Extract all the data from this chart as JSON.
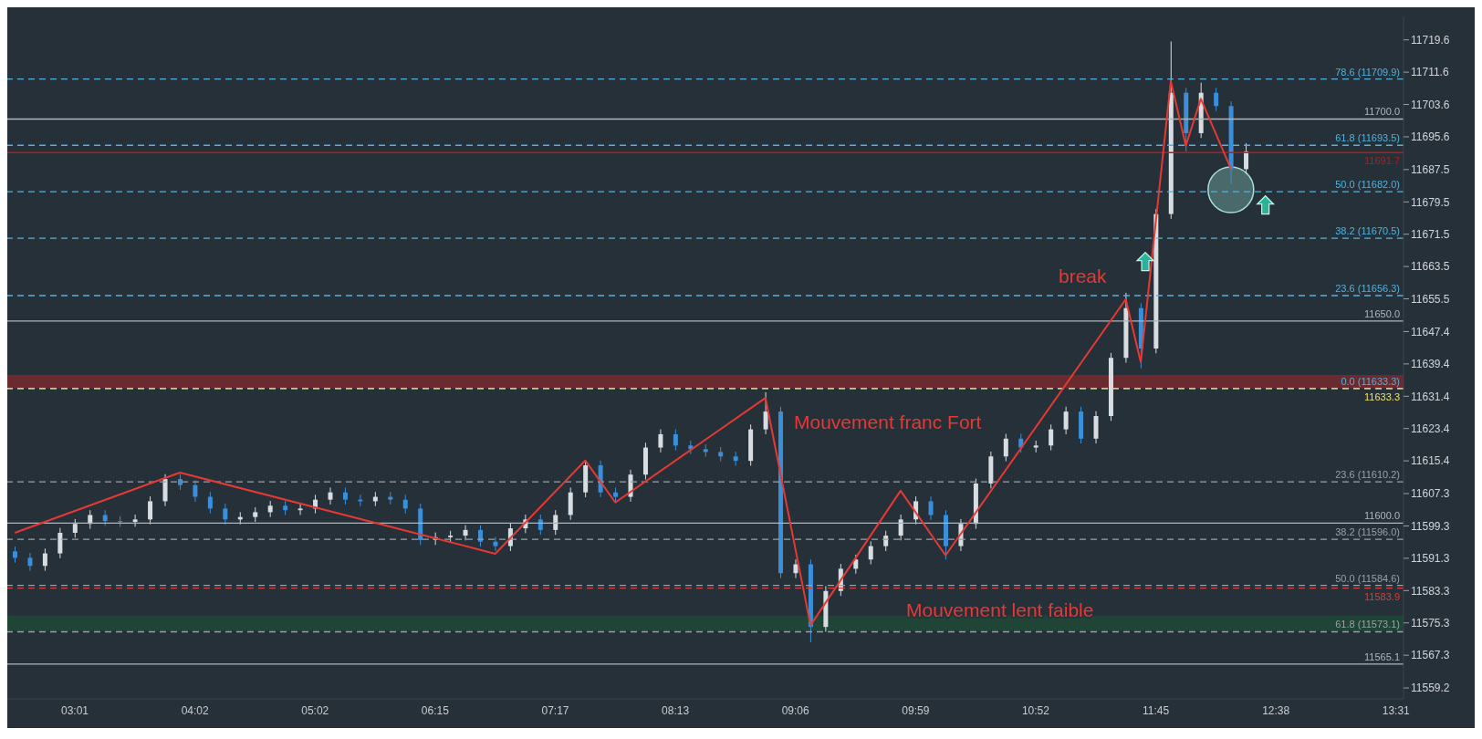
{
  "chart_data": {
    "type": "candlestick",
    "categories": [
      null,
      null,
      null,
      null,
      "03:01",
      null,
      null,
      null,
      null,
      null,
      null,
      null,
      "04:02",
      null,
      null,
      null,
      null,
      null,
      null,
      null,
      "05:02",
      null,
      null,
      null,
      null,
      null,
      null,
      null,
      "06:15",
      null,
      null,
      null,
      null,
      null,
      null,
      null,
      "07:17",
      null,
      null,
      null,
      null,
      null,
      null,
      null,
      "08:13",
      null,
      null,
      null,
      null,
      null,
      null,
      null,
      "09:06",
      null,
      null,
      null,
      null,
      null,
      null,
      null,
      "09:59",
      null,
      null,
      null,
      null,
      null,
      null,
      null,
      "10:52",
      null,
      null,
      null,
      null,
      null,
      null,
      null,
      "11:45",
      null,
      null,
      null,
      null,
      null,
      null,
      null,
      "12:38",
      null,
      null,
      null,
      null,
      null,
      null,
      null,
      "13:31"
    ],
    "ohlc": [
      [
        11593.0,
        11594.2,
        11590.2,
        11591.4
      ],
      [
        11591.4,
        11592.6,
        11588.2,
        11589.4
      ],
      [
        11589.4,
        11593.7,
        11588.2,
        11592.5
      ],
      [
        11592.5,
        11598.8,
        11591.3,
        11597.6
      ],
      [
        11597.6,
        11601.0,
        11596.4,
        11599.8
      ],
      [
        11599.8,
        11603.2,
        11598.6,
        11602.0
      ],
      [
        11602.0,
        11603.2,
        11599.3,
        11600.5
      ],
      [
        11600.5,
        11601.7,
        11599.1,
        11600.3
      ],
      [
        11600.3,
        11602.1,
        11599.1,
        11600.9
      ],
      [
        11600.9,
        11606.6,
        11599.7,
        11605.4
      ],
      [
        11605.4,
        11612.1,
        11604.2,
        11610.9
      ],
      [
        11610.9,
        11612.1,
        11608.2,
        11609.4
      ],
      [
        11609.4,
        11610.6,
        11605.3,
        11606.5
      ],
      [
        11606.5,
        11607.7,
        11602.4,
        11603.6
      ],
      [
        11603.6,
        11604.8,
        11599.7,
        11600.9
      ],
      [
        11600.9,
        11602.7,
        11599.7,
        11601.5
      ],
      [
        11601.5,
        11603.9,
        11600.3,
        11602.7
      ],
      [
        11602.7,
        11605.5,
        11601.5,
        11604.3
      ],
      [
        11604.3,
        11605.5,
        11602.0,
        11603.2
      ],
      [
        11603.2,
        11604.8,
        11602.0,
        11603.6
      ],
      [
        11603.6,
        11607.0,
        11602.4,
        11605.8
      ],
      [
        11605.8,
        11608.8,
        11604.6,
        11607.6
      ],
      [
        11607.6,
        11608.8,
        11604.6,
        11605.8
      ],
      [
        11605.8,
        11607.0,
        11604.2,
        11605.4
      ],
      [
        11605.4,
        11607.7,
        11604.2,
        11606.5
      ],
      [
        11606.5,
        11607.7,
        11604.6,
        11605.8
      ],
      [
        11605.8,
        11607.0,
        11602.4,
        11603.6
      ],
      [
        11603.6,
        11604.8,
        11594.6,
        11595.8
      ],
      [
        11595.8,
        11597.7,
        11594.6,
        11596.5
      ],
      [
        11596.5,
        11598.1,
        11595.3,
        11596.9
      ],
      [
        11596.9,
        11599.5,
        11595.7,
        11598.3
      ],
      [
        11598.3,
        11599.5,
        11594.2,
        11595.4
      ],
      [
        11595.4,
        11596.6,
        11593.1,
        11594.3
      ],
      [
        11594.3,
        11599.9,
        11593.1,
        11598.7
      ],
      [
        11598.7,
        11602.1,
        11597.5,
        11600.9
      ],
      [
        11600.9,
        11602.1,
        11597.1,
        11598.3
      ],
      [
        11598.3,
        11603.2,
        11597.1,
        11602.0
      ],
      [
        11602.0,
        11608.8,
        11600.8,
        11607.6
      ],
      [
        11607.6,
        11615.5,
        11606.4,
        11614.3
      ],
      [
        11614.3,
        11615.5,
        11606.4,
        11607.6
      ],
      [
        11607.6,
        11608.8,
        11605.3,
        11606.5
      ],
      [
        11606.5,
        11613.2,
        11605.3,
        11612.0
      ],
      [
        11612.0,
        11619.9,
        11610.8,
        11618.7
      ],
      [
        11618.7,
        11623.2,
        11617.5,
        11622.0
      ],
      [
        11622.0,
        11623.2,
        11618.0,
        11619.2
      ],
      [
        11619.2,
        11620.4,
        11617.1,
        11618.3
      ],
      [
        11618.3,
        11619.5,
        11616.4,
        11617.6
      ],
      [
        11617.6,
        11618.8,
        11615.3,
        11616.5
      ],
      [
        11616.5,
        11617.7,
        11614.2,
        11615.4
      ],
      [
        11615.4,
        11624.4,
        11614.2,
        11623.2
      ],
      [
        11623.2,
        11632.4,
        11622.0,
        11627.6
      ],
      [
        11627.6,
        11628.8,
        11586.4,
        11587.6
      ],
      [
        11587.6,
        11591.0,
        11586.4,
        11589.8
      ],
      [
        11589.8,
        11591.0,
        11570.5,
        11574.3
      ],
      [
        11574.3,
        11584.4,
        11573.1,
        11583.2
      ],
      [
        11583.2,
        11589.9,
        11582.0,
        11588.7
      ],
      [
        11588.7,
        11592.2,
        11587.5,
        11591.0
      ],
      [
        11591.0,
        11595.5,
        11589.8,
        11594.3
      ],
      [
        11594.3,
        11598.1,
        11593.1,
        11596.9
      ],
      [
        11596.9,
        11602.1,
        11595.7,
        11600.9
      ],
      [
        11600.9,
        11606.6,
        11599.7,
        11605.4
      ],
      [
        11605.4,
        11606.6,
        11600.8,
        11602.0
      ],
      [
        11602.0,
        11603.2,
        11591.0,
        11594.3
      ],
      [
        11594.3,
        11601.0,
        11593.1,
        11599.8
      ],
      [
        11599.8,
        11611.0,
        11598.6,
        11609.8
      ],
      [
        11609.8,
        11617.7,
        11608.6,
        11616.5
      ],
      [
        11616.5,
        11622.1,
        11615.3,
        11620.9
      ],
      [
        11620.9,
        11622.1,
        11617.5,
        11618.7
      ],
      [
        11618.7,
        11620.4,
        11617.5,
        11619.2
      ],
      [
        11619.2,
        11624.4,
        11618.0,
        11623.2
      ],
      [
        11623.2,
        11628.8,
        11622.0,
        11627.6
      ],
      [
        11627.6,
        11628.8,
        11619.7,
        11620.9
      ],
      [
        11620.9,
        11627.7,
        11619.7,
        11626.5
      ],
      [
        11626.5,
        11642.1,
        11625.3,
        11640.9
      ],
      [
        11640.9,
        11657.0,
        11639.7,
        11653.2
      ],
      [
        11653.2,
        11654.4,
        11638.3,
        11643.2
      ],
      [
        11643.2,
        11677.7,
        11642.0,
        11676.5
      ],
      [
        11676.5,
        11719.2,
        11675.3,
        11706.5
      ],
      [
        11706.5,
        11707.7,
        11692.0,
        11696.5
      ],
      [
        11696.5,
        11709.0,
        11695.3,
        11706.5
      ],
      [
        11706.5,
        11707.7,
        11702.0,
        11703.2
      ],
      [
        11703.2,
        11704.4,
        11684.0,
        11687.6
      ],
      [
        11687.6,
        11694.0,
        11686.4,
        11692.0
      ],
      null,
      null,
      null,
      null,
      null,
      null,
      null,
      null,
      null,
      null
    ],
    "series": [
      {
        "type": "line",
        "color": "#e53935",
        "values": [
          11597.6,
          null,
          null,
          null,
          null,
          null,
          null,
          null,
          null,
          null,
          null,
          11612.5,
          null,
          null,
          null,
          null,
          null,
          null,
          null,
          null,
          null,
          null,
          null,
          null,
          null,
          null,
          null,
          null,
          null,
          null,
          null,
          null,
          11592.4,
          null,
          null,
          null,
          null,
          null,
          11615.5,
          null,
          11605.1,
          null,
          null,
          null,
          null,
          null,
          null,
          null,
          null,
          null,
          11631.0,
          null,
          null,
          11574.7,
          null,
          null,
          null,
          null,
          null,
          11608.0,
          null,
          null,
          11592.0,
          null,
          null,
          null,
          null,
          null,
          null,
          null,
          null,
          null,
          null,
          null,
          11655.4,
          11639.8,
          null,
          11709.4,
          11693.4,
          11705.0,
          null,
          11687.7,
          null,
          null,
          null,
          null,
          null,
          null,
          null,
          null,
          null,
          null,
          null
        ]
      }
    ],
    "ylim": [
      11556.5,
      11725.4
    ],
    "yticks": [
      11559.2,
      11567.3,
      11575.3,
      11583.3,
      11591.3,
      11599.3,
      11607.3,
      11615.4,
      11623.4,
      11631.4,
      11639.4,
      11647.4,
      11655.5,
      11663.5,
      11671.5,
      11679.5,
      11687.5,
      11695.6,
      11703.6,
      11711.6,
      11719.6
    ],
    "ref_lines": [
      {
        "axis": "y",
        "value": 11709.9,
        "label": "78.6 (11709.9)",
        "color": "#4fb3e0",
        "line_style": "dashed"
      },
      {
        "axis": "y",
        "value": 11700.0,
        "label": "11700.0",
        "color": "#b0b5ba",
        "line_style": "solid"
      },
      {
        "axis": "y",
        "value": 11693.5,
        "label": "61.8 (11693.5)",
        "color": "#4fb3e0",
        "line_style": "dashed"
      },
      {
        "axis": "y",
        "value": 11691.7,
        "label": "11691.7",
        "color": "#b71c1c",
        "line_style": "solid"
      },
      {
        "axis": "y",
        "value": 11682.0,
        "label": "50.0 (11682.0)",
        "color": "#4fb3e0",
        "line_style": "dashed"
      },
      {
        "axis": "y",
        "value": 11670.5,
        "label": "38.2 (11670.5)",
        "color": "#4fb3e0",
        "line_style": "dashed"
      },
      {
        "axis": "y",
        "value": 11656.3,
        "label": "23.6 (11656.3)",
        "color": "#4fb3e0",
        "line_style": "dashed"
      },
      {
        "axis": "y",
        "value": 11650.0,
        "label": "11650.0",
        "color": "#b0b5ba",
        "line_style": "solid"
      },
      {
        "axis": "y",
        "value": 11633.3,
        "label": "0.0 (11633.3)",
        "color": "#4fb3e0",
        "line_style": "dashed"
      },
      {
        "axis": "y",
        "value": 11633.3,
        "label": "11633.3",
        "color": "#f0e068",
        "line_style": "dashed"
      },
      {
        "axis": "y",
        "value": 11610.2,
        "label": "23.6 (11610.2)",
        "color": "#9aa0a6",
        "line_style": "dashed"
      },
      {
        "axis": "y",
        "value": 11600.0,
        "label": "11600.0",
        "color": "#b0b5ba",
        "line_style": "solid"
      },
      {
        "axis": "y",
        "value": 11596.0,
        "label": "38.2 (11596.0)",
        "color": "#9aa0a6",
        "line_style": "dashed"
      },
      {
        "axis": "y",
        "value": 11584.6,
        "label": "50.0 (11584.6)",
        "color": "#9aa0a6",
        "line_style": "dashed"
      },
      {
        "axis": "y",
        "value": 11583.9,
        "label": "11583.9",
        "color": "#e53935",
        "line_style": "dashed"
      },
      {
        "axis": "y",
        "value": 11573.1,
        "label": "61.8 (11573.1)",
        "color": "#9aa0a6",
        "line_style": "dashed"
      },
      {
        "axis": "y",
        "value": 11565.1,
        "label": "11565.1",
        "color": "#b0b5ba",
        "line_style": "solid"
      }
    ],
    "bands": [
      {
        "axis": "y",
        "from": 11633.5,
        "to": 11636.5,
        "color": "#7a2a2e"
      },
      {
        "axis": "y",
        "from": 11573.5,
        "to": 11577.0,
        "color": "#1f4a36"
      }
    ],
    "annotations": [
      "Mouvement franc Fort",
      "Mouvement lent faible",
      "break"
    ]
  }
}
